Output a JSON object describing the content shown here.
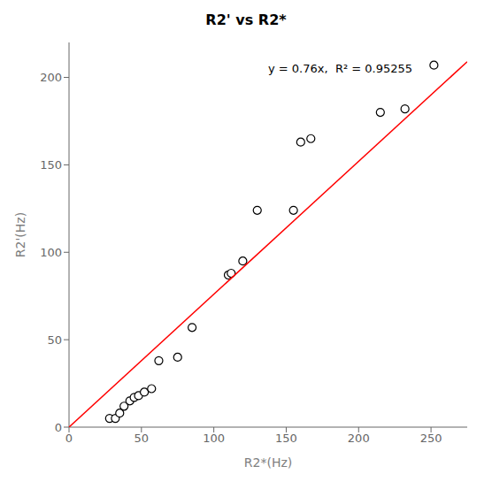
{
  "chart_data": {
    "type": "scatter",
    "title": "R2' vs R2*",
    "xlabel": "R2*(Hz)",
    "ylabel": "R2'(Hz)",
    "series": [
      {
        "type": "scatter",
        "x": [
          28,
          32,
          35,
          38,
          42,
          45,
          48,
          52,
          57,
          62,
          75,
          85,
          110,
          112,
          120,
          130,
          155,
          160,
          167,
          215,
          232,
          252
        ],
        "values": [
          5,
          5,
          8,
          12,
          15,
          17,
          18,
          20,
          22,
          38,
          40,
          57,
          87,
          88,
          95,
          124,
          124,
          163,
          165,
          180,
          182,
          207
        ],
        "color": "#000000",
        "marker": "circle"
      },
      {
        "type": "line",
        "x": [
          0,
          275
        ],
        "values": [
          0,
          209
        ],
        "color": "#ff0000",
        "line_style": "solid"
      }
    ],
    "annotation": "y = 0.76x,  R² = 0.95255",
    "xlim": [
      0,
      275
    ],
    "ylim": [
      0,
      220
    ],
    "xticks": [
      0,
      50,
      100,
      150,
      200,
      250
    ],
    "yticks": [
      0,
      50,
      100,
      150,
      200
    ],
    "grid": false
  }
}
